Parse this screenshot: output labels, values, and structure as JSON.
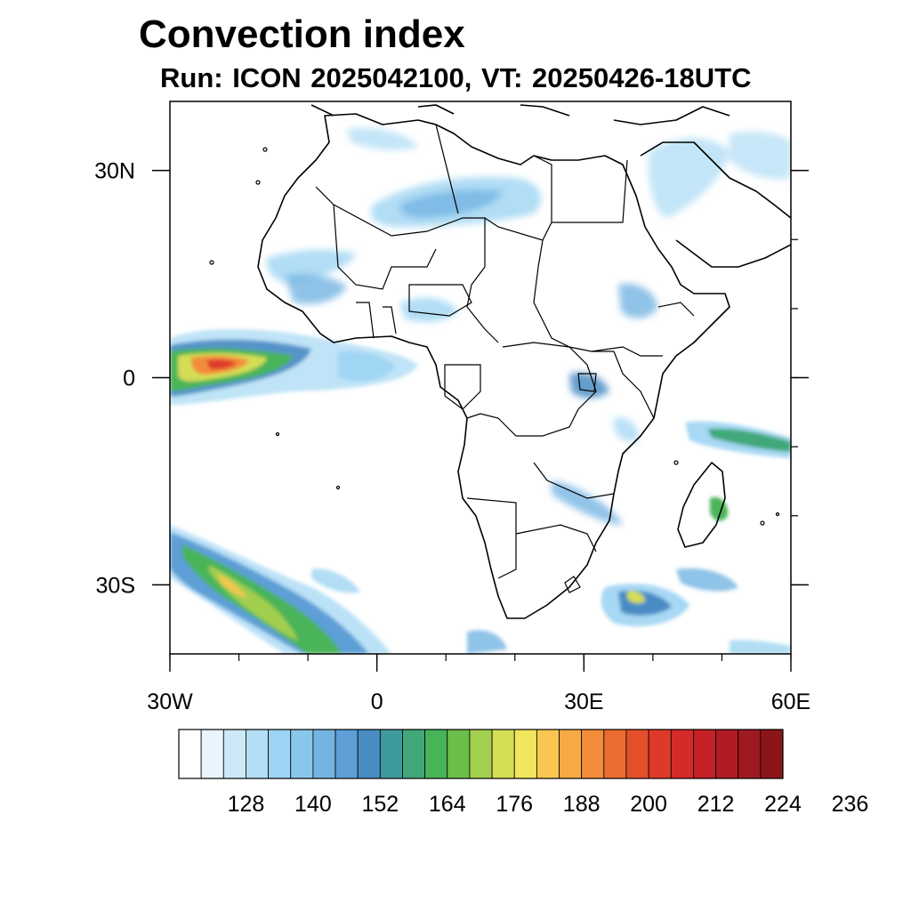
{
  "title": "Convection index",
  "subtitle": "Run: ICON 2025042100,  VT: 20250426-18UTC",
  "axes": {
    "x_ticks": [
      {
        "lon": -30,
        "label": "30W"
      },
      {
        "lon": 0,
        "label": "0"
      },
      {
        "lon": 30,
        "label": "30E"
      },
      {
        "lon": 60,
        "label": "60E"
      }
    ],
    "y_ticks": [
      {
        "lat": 30,
        "label": "30N"
      },
      {
        "lat": 0,
        "label": "0"
      },
      {
        "lat": -30,
        "label": "30S"
      }
    ],
    "lon_range": [
      -30,
      60
    ],
    "lat_range": [
      -40,
      40
    ]
  },
  "colorbar": {
    "colors": [
      "#ffffff",
      "#e8f5fc",
      "#cde9f8",
      "#b4def6",
      "#9dd4f3",
      "#88c6ec",
      "#74b4e2",
      "#5d9fd6",
      "#4a8cc4",
      "#3f9aa0",
      "#40a879",
      "#48b458",
      "#6abe4a",
      "#a3cf4f",
      "#d4de55",
      "#f2e45b",
      "#f9c74f",
      "#f7a945",
      "#f28c3a",
      "#ec6b30",
      "#e5502a",
      "#df3a29",
      "#d42a2a",
      "#c42028",
      "#b01b24",
      "#9e1a20",
      "#8b161a"
    ],
    "labels": [
      "128",
      "140",
      "152",
      "164",
      "176",
      "188",
      "200",
      "212",
      "224",
      "236"
    ]
  }
}
